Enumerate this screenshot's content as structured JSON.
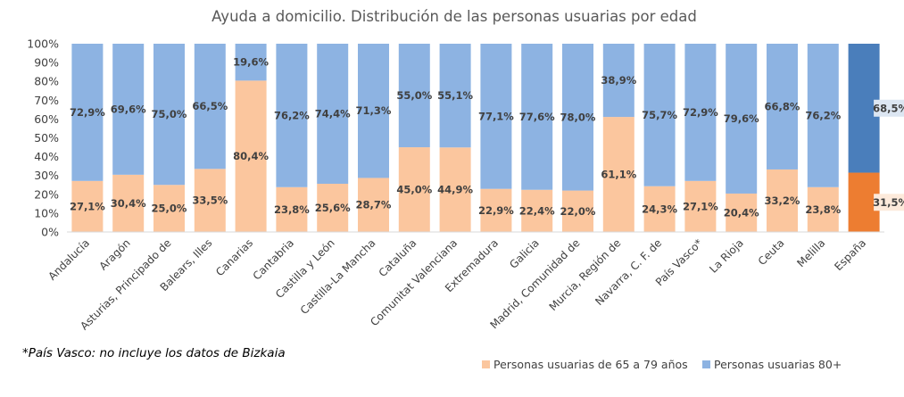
{
  "chart_data": {
    "type": "bar",
    "stacked": true,
    "percent": true,
    "title": "Ayuda a domicilio. Distribución de las personas usuarias por edad",
    "xlabel": "",
    "ylabel": "",
    "ylim": [
      0,
      100
    ],
    "yticks": [
      "0%",
      "10%",
      "20%",
      "30%",
      "40%",
      "50%",
      "60%",
      "70%",
      "80%",
      "90%",
      "100%"
    ],
    "categories": [
      "Andalucía",
      "Aragón",
      "Asturias, Principado de",
      "Balears, Illes",
      "Canarias",
      "Cantabria",
      "Castilla y León",
      "Castilla-La Mancha",
      "Cataluña",
      "Comunitat Valenciana",
      "Extremadura",
      "Galicia",
      "Madrid, Comunidad de",
      "Murcia, Región de",
      "Navarra, C. F. de",
      "País Vasco*",
      "La Rioja",
      "Ceuta",
      "Melilla",
      "España"
    ],
    "series": [
      {
        "name": "Personas usuarias de 65 a 79 años",
        "values": [
          27.1,
          30.4,
          25.0,
          33.5,
          80.4,
          23.8,
          25.6,
          28.7,
          45.0,
          44.9,
          22.9,
          22.4,
          22.0,
          61.1,
          24.3,
          27.1,
          20.4,
          33.2,
          23.8,
          31.5
        ],
        "labels": [
          "27,1%",
          "30,4%",
          "25,0%",
          "33,5%",
          "80,4%",
          "23,8%",
          "25,6%",
          "28,7%",
          "45,0%",
          "44,9%",
          "22,9%",
          "22,4%",
          "22,0%",
          "61,1%",
          "24,3%",
          "27,1%",
          "20,4%",
          "33,2%",
          "23,8%",
          "31,5%"
        ],
        "color": "#FBC69E",
        "highlight_color": "#ED7D31"
      },
      {
        "name": "Personas usuarias 80+",
        "values": [
          72.9,
          69.6,
          75.0,
          66.5,
          19.6,
          76.2,
          74.4,
          71.3,
          55.0,
          55.1,
          77.1,
          77.6,
          78.0,
          38.9,
          75.7,
          72.9,
          79.6,
          66.8,
          76.2,
          68.5
        ],
        "labels": [
          "72,9%",
          "69,6%",
          "75,0%",
          "66,5%",
          "19,6%",
          "76,2%",
          "74,4%",
          "71,3%",
          "55,0%",
          "55,1%",
          "77,1%",
          "77,6%",
          "78,0%",
          "38,9%",
          "75,7%",
          "72,9%",
          "79,6%",
          "66,8%",
          "76,2%",
          "68,5%"
        ],
        "color": "#8DB3E2",
        "highlight_color": "#4A7EBB"
      }
    ],
    "highlight_category": "España",
    "legend_position": "bottom-right",
    "grid": false
  },
  "footnote": "*País Vasco: no incluye los datos de Bizkaia"
}
